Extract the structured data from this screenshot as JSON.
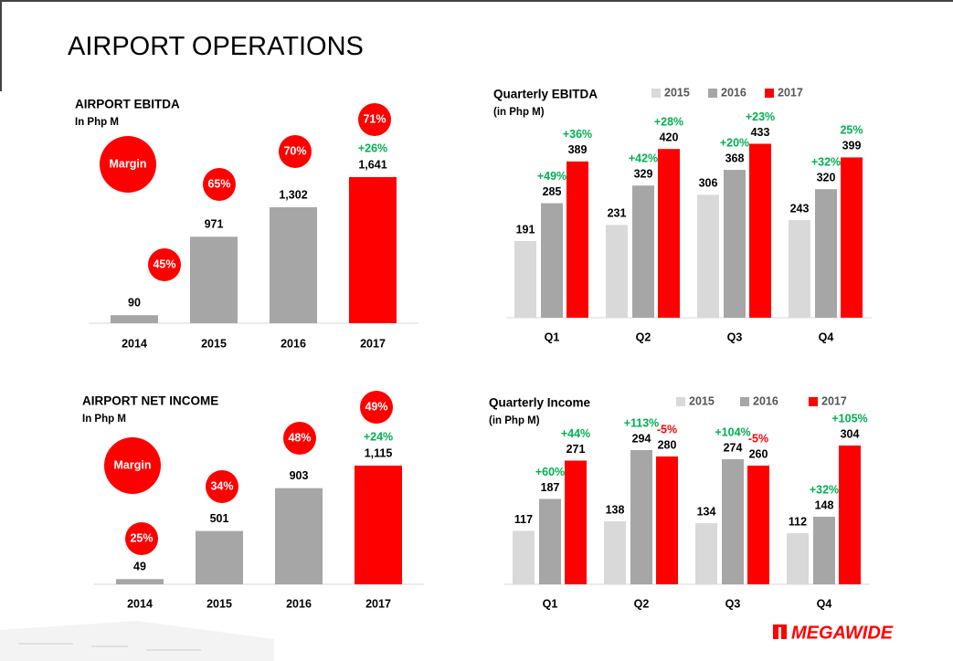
{
  "title": "AIRPORT OPERATIONS",
  "footer": {
    "logo": "MEGAWIDE"
  },
  "chart_data": [
    {
      "type": "bar",
      "title": "AIRPORT EBITDA",
      "subtitle": "In Php M",
      "color": "#a6a6a6",
      "highlight_color": "#ff0000",
      "categories": [
        "2014",
        "2015",
        "2016",
        "2017"
      ],
      "values": [
        90,
        971,
        1302,
        1641
      ],
      "value_labels": [
        "90",
        "971",
        "1,302",
        "1,641"
      ],
      "margin_title": "Margin",
      "margin_color": "#ff0000",
      "margins": [
        45,
        65,
        70,
        71
      ],
      "margin_labels": [
        "45%",
        "65%",
        "70%",
        "71%"
      ],
      "growth": [
        null,
        null,
        null,
        26
      ],
      "growth_labels": [
        null,
        null,
        null,
        "+26%"
      ]
    },
    {
      "type": "groupedbar",
      "title": "Quarterly EBITDA",
      "subtitle": "(in Php M)",
      "categories": [
        "Q1",
        "Q2",
        "Q3",
        "Q4"
      ],
      "series": [
        {
          "name": "2015",
          "color": "#d9d9d9",
          "values": [
            191,
            231,
            306,
            243
          ]
        },
        {
          "name": "2016",
          "color": "#a6a6a6",
          "values": [
            285,
            329,
            368,
            320
          ],
          "growth": [
            49,
            42,
            20,
            32
          ],
          "growth_labels": [
            "+49%",
            "+42%",
            "+20%",
            "+32%"
          ]
        },
        {
          "name": "2017",
          "color": "#ff0000",
          "values": [
            389,
            420,
            433,
            399
          ],
          "growth": [
            36,
            28,
            23,
            25
          ],
          "growth_labels": [
            "+36%",
            "+28%",
            "+23%",
            "25%"
          ]
        }
      ]
    },
    {
      "type": "bar",
      "title": "AIRPORT NET INCOME",
      "subtitle": "In Php M",
      "color": "#a6a6a6",
      "highlight_color": "#ff0000",
      "categories": [
        "2014",
        "2015",
        "2016",
        "2017"
      ],
      "values": [
        49,
        501,
        903,
        1115
      ],
      "value_labels": [
        "49",
        "501",
        "903",
        "1,115"
      ],
      "margin_title": "Margin",
      "margin_color": "#ff0000",
      "margins": [
        25,
        34,
        48,
        49
      ],
      "margin_labels": [
        "25%",
        "34%",
        "48%",
        "49%"
      ],
      "growth": [
        null,
        null,
        null,
        24
      ],
      "growth_labels": [
        null,
        null,
        null,
        "+24%"
      ]
    },
    {
      "type": "groupedbar",
      "title": "Quarterly Income",
      "subtitle": "(in Php M)",
      "categories": [
        "Q1",
        "Q2",
        "Q3",
        "Q4"
      ],
      "series": [
        {
          "name": "2015",
          "color": "#d9d9d9",
          "values": [
            117,
            138,
            134,
            112
          ]
        },
        {
          "name": "2016",
          "color": "#a6a6a6",
          "values": [
            187,
            294,
            274,
            148
          ],
          "growth": [
            60,
            113,
            104,
            32
          ],
          "growth_labels": [
            "+60%",
            "+113%",
            "+104%",
            "+32%"
          ]
        },
        {
          "name": "2017",
          "color": "#ff0000",
          "values": [
            271,
            280,
            260,
            304
          ],
          "growth": [
            44,
            -5,
            -5,
            105
          ],
          "growth_labels": [
            "+44%",
            "-5%",
            "-5%",
            "+105%"
          ]
        }
      ]
    }
  ]
}
